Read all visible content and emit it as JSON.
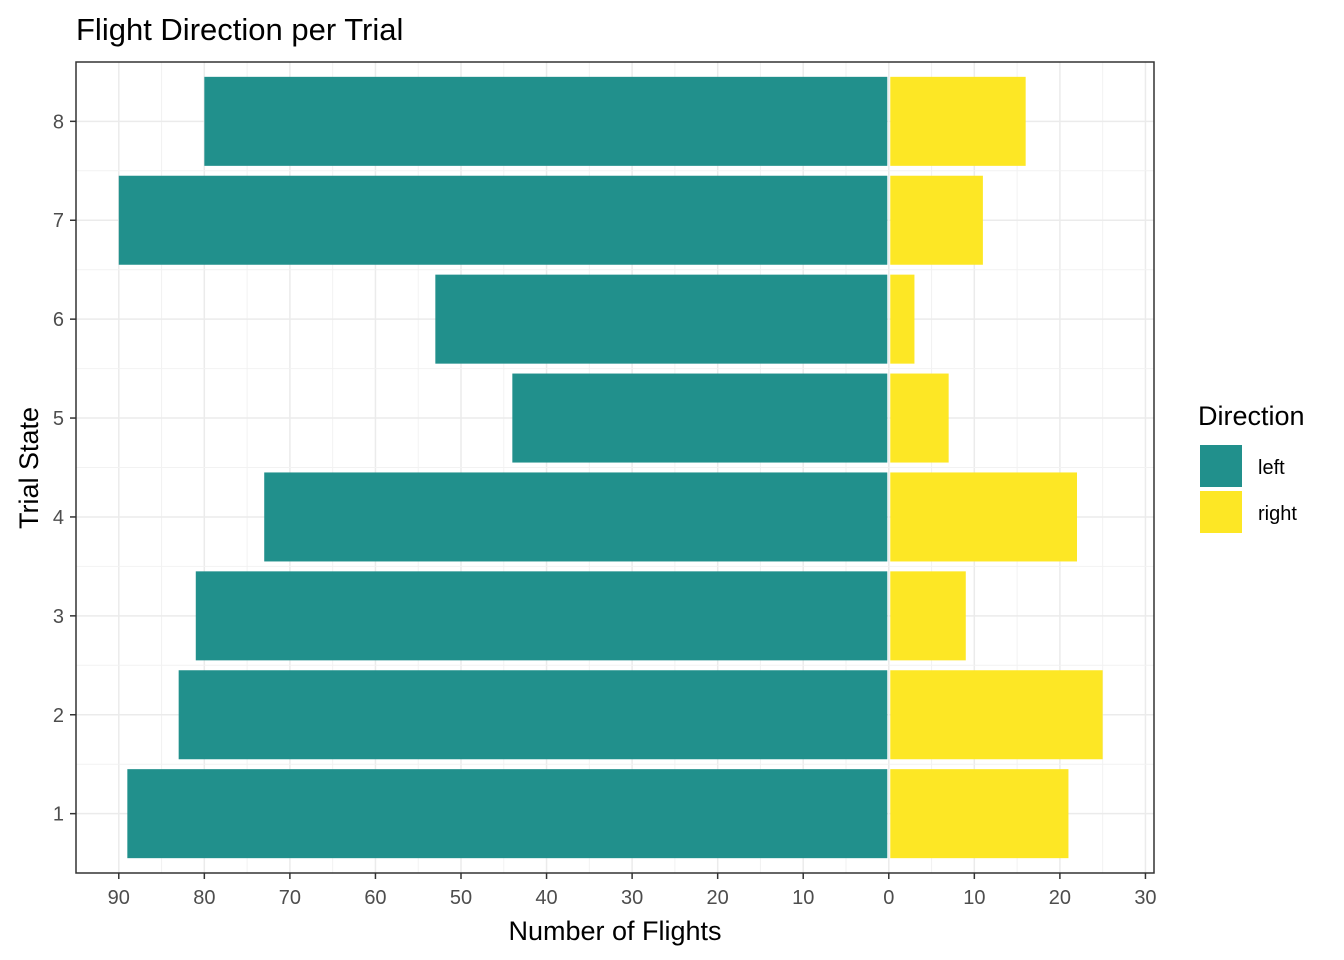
{
  "chart_data": {
    "type": "bar",
    "orientation": "horizontal",
    "title": "Flight Direction per Trial",
    "xlabel": "Number of Flights",
    "ylabel": "Trial State",
    "categories": [
      "1",
      "2",
      "3",
      "4",
      "5",
      "6",
      "7",
      "8"
    ],
    "series": [
      {
        "name": "left",
        "values": [
          89,
          83,
          81,
          73,
          44,
          53,
          90,
          80
        ],
        "color": "#21908C",
        "side": "negative"
      },
      {
        "name": "right",
        "values": [
          21,
          25,
          9,
          22,
          7,
          3,
          11,
          16
        ],
        "color": "#FDE725",
        "side": "positive"
      }
    ],
    "xlim": [
      -95,
      31
    ],
    "x_ticks": [
      -90,
      -80,
      -70,
      -60,
      -50,
      -40,
      -30,
      -20,
      -10,
      0,
      10,
      20,
      30
    ],
    "x_tick_labels": [
      "90",
      "80",
      "70",
      "60",
      "50",
      "40",
      "30",
      "20",
      "10",
      "0",
      "10",
      "20",
      "30"
    ],
    "grid": true,
    "legend": {
      "title": "Direction",
      "position": "right",
      "entries": [
        "left",
        "right"
      ]
    }
  }
}
